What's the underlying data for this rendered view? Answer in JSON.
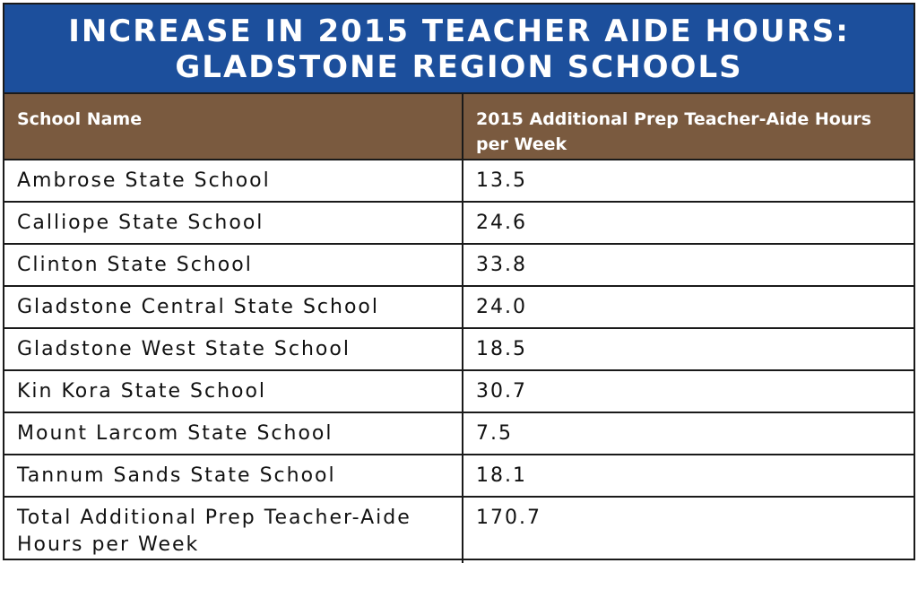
{
  "title": {
    "line1": "INCREASE IN 2015 TEACHER AIDE HOURS:",
    "line2": "GLADSTONE REGION SCHOOLS"
  },
  "table": {
    "headers": [
      "School Name",
      "2015 Additional Prep Teacher-Aide Hours per Week"
    ],
    "rows": [
      {
        "school": "Ambrose State School",
        "hours": "13.5"
      },
      {
        "school": "Calliope State School",
        "hours": "24.6"
      },
      {
        "school": "Clinton State School",
        "hours": "33.8"
      },
      {
        "school": "Gladstone Central State School",
        "hours": "24.0"
      },
      {
        "school": "Gladstone West State School",
        "hours": "18.5"
      },
      {
        "school": "Kin Kora State School",
        "hours": "30.7"
      },
      {
        "school": "Mount Larcom State School",
        "hours": "7.5"
      },
      {
        "school": "Tannum Sands State School",
        "hours": "18.1"
      }
    ],
    "total": {
      "label": "Total Additional Prep Teacher-Aide Hours per Week",
      "hours": "170.7"
    }
  },
  "colors": {
    "title_bg": "#1c4f9c",
    "header_bg": "#7a5a3f",
    "border": "#1a1a1a"
  }
}
